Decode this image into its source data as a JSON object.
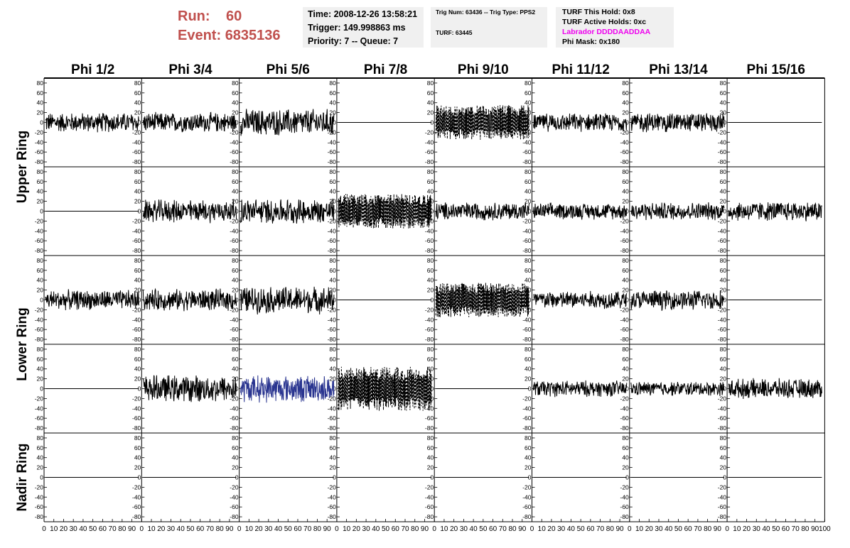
{
  "header": {
    "run_label": "Run:",
    "run_value": "60",
    "event_label": "Event:",
    "event_value": "6835136",
    "time": "Time: 2008-12-26 13:58:21",
    "trigger": "Trigger: 149.998863 ms",
    "priority": "Priority: 7 -- Queue: 7",
    "trig_info": "Trig Num: 63436 -- Trig Type: PPS2",
    "turf": "TURF: 63445",
    "turf_this_hold": "TURF This Hold: 0x8",
    "turf_active_holds": "TURF Active Holds: 0xc",
    "labrador": "Labrador DDDDAADDAA",
    "phi_mask": "Phi Mask: 0x180"
  },
  "colors": {
    "run_text": "#c0504d",
    "labrador_text": "#ee00ee",
    "trace": "#000000",
    "triggered_trace": "#2a3590",
    "panel_bg": "#f0f0f0"
  },
  "chart_data": {
    "type": "line",
    "columns": [
      "Phi 1/2",
      "Phi 3/4",
      "Phi 5/6",
      "Phi 7/8",
      "Phi 9/10",
      "Phi 11/12",
      "Phi 13/14",
      "Phi 15/16"
    ],
    "rows": [
      "Upper Ring",
      "Lower Ring",
      "Nadir Ring"
    ],
    "xlim": [
      0,
      100
    ],
    "ylim": [
      -90,
      90
    ],
    "x_tick_labels": [
      "0",
      "10",
      "20",
      "30",
      "40",
      "50",
      "60",
      "70",
      "80",
      "90",
      "100"
    ],
    "y_tick_labels": [
      "80",
      "60",
      "40",
      "20",
      "0",
      "-20",
      "-40",
      "-60",
      "-80"
    ],
    "panels": [
      [
        {
          "state": "noise",
          "amp": 22
        },
        {
          "state": "noise",
          "amp": 22
        },
        {
          "state": "noise",
          "amp": 30
        },
        {
          "state": "flat"
        },
        {
          "state": "dashed",
          "amp": 35
        },
        {
          "state": "noise",
          "amp": 20
        },
        {
          "state": "noise",
          "amp": 22
        },
        {
          "state": "flat"
        }
      ],
      [
        {
          "state": "flat"
        },
        {
          "state": "noise",
          "amp": 25
        },
        {
          "state": "noise",
          "amp": 28
        },
        {
          "state": "dashed",
          "amp": 35
        },
        {
          "state": "noise",
          "amp": 20
        },
        {
          "state": "noise",
          "amp": 18
        },
        {
          "state": "noise",
          "amp": 20
        },
        {
          "state": "noise",
          "amp": 22
        }
      ],
      [
        {
          "state": "noise",
          "amp": 22
        },
        {
          "state": "noise",
          "amp": 24
        },
        {
          "state": "noise",
          "amp": 30
        },
        {
          "state": "flat"
        },
        {
          "state": "dashed",
          "amp": 35
        },
        {
          "state": "noise",
          "amp": 20
        },
        {
          "state": "noise",
          "amp": 22
        },
        {
          "state": "flat"
        }
      ],
      [
        {
          "state": "flat"
        },
        {
          "state": "noise",
          "amp": 30
        },
        {
          "state": "noise-blue",
          "amp": 30
        },
        {
          "state": "dashed",
          "amp": 45
        },
        {
          "state": "flat"
        },
        {
          "state": "noise",
          "amp": 18
        },
        {
          "state": "noise",
          "amp": 16
        },
        {
          "state": "noise",
          "amp": 22
        }
      ],
      [
        {
          "state": "flat"
        },
        {
          "state": "flat"
        },
        {
          "state": "flat"
        },
        {
          "state": "flat"
        },
        {
          "state": "flat"
        },
        {
          "state": "flat"
        },
        {
          "state": "flat"
        },
        {
          "state": "flat"
        }
      ]
    ]
  }
}
